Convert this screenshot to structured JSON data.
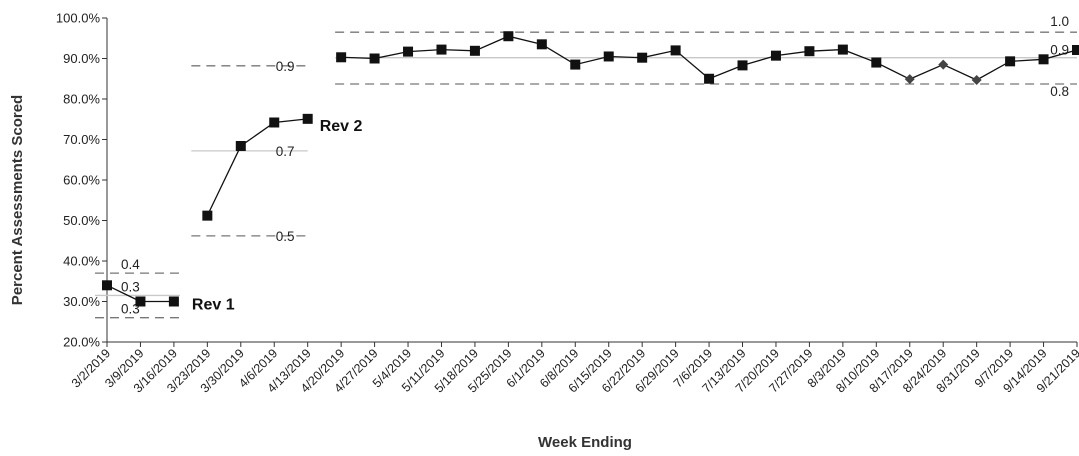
{
  "chart_data": {
    "type": "line",
    "title": "",
    "xlabel": "Week Ending",
    "ylabel": "Percent Assessments Scored",
    "ylim": [
      20,
      100
    ],
    "y_ticks": [
      "20.0%",
      "30.0%",
      "40.0%",
      "50.0%",
      "60.0%",
      "70.0%",
      "80.0%",
      "90.0%",
      "100.0%"
    ],
    "grid": false,
    "categories": [
      "3/2/2019",
      "3/9/2019",
      "3/16/2019",
      "3/23/2019",
      "3/30/2019",
      "4/6/2019",
      "4/13/2019",
      "4/20/2019",
      "4/27/2019",
      "5/4/2019",
      "5/11/2019",
      "5/18/2019",
      "5/25/2019",
      "6/1/2019",
      "6/8/2019",
      "6/15/2019",
      "6/22/2019",
      "6/29/2019",
      "7/6/2019",
      "7/13/2019",
      "7/20/2019",
      "7/27/2019",
      "8/3/2019",
      "8/10/2019",
      "8/17/2019",
      "8/24/2019",
      "8/31/2019",
      "9/7/2019",
      "9/14/2019",
      "9/21/2019"
    ],
    "segments": [
      {
        "x": [
          "3/2/2019",
          "3/9/2019",
          "3/16/2019"
        ],
        "values": [
          34.0,
          30.0,
          30.0
        ],
        "markers": [
          "square",
          "square",
          "square"
        ],
        "label": "Rev 1",
        "limits": [
          {
            "value": 37.0,
            "label": "0.4",
            "style": "dashed"
          },
          {
            "value": 31.5,
            "label": "0.3",
            "style": "solid"
          },
          {
            "value": 26.0,
            "label": "0.3",
            "style": "dashed"
          }
        ]
      },
      {
        "x": [
          "3/23/2019",
          "3/30/2019",
          "4/6/2019",
          "4/13/2019"
        ],
        "values": [
          51.2,
          68.4,
          74.2,
          75.1
        ],
        "markers": [
          "square",
          "square",
          "square",
          "square"
        ],
        "label": "Rev 2",
        "limits": [
          {
            "value": 88.2,
            "label": "0.9",
            "style": "dashed"
          },
          {
            "value": 67.2,
            "label": "0.7",
            "style": "solid"
          },
          {
            "value": 46.2,
            "label": "0.5",
            "style": "dashed"
          }
        ]
      },
      {
        "x": [
          "4/20/2019",
          "4/27/2019",
          "5/4/2019",
          "5/11/2019",
          "5/18/2019",
          "5/25/2019",
          "6/1/2019",
          "6/8/2019",
          "6/15/2019",
          "6/22/2019",
          "6/29/2019",
          "7/6/2019",
          "7/13/2019",
          "7/20/2019",
          "7/27/2019",
          "8/3/2019",
          "8/10/2019",
          "8/17/2019",
          "8/24/2019",
          "8/31/2019",
          "9/7/2019",
          "9/14/2019",
          "9/21/2019"
        ],
        "values": [
          90.3,
          90.0,
          91.7,
          92.2,
          91.9,
          95.5,
          93.5,
          88.5,
          90.5,
          90.2,
          92.0,
          85.0,
          88.3,
          90.7,
          91.8,
          92.2,
          89.0,
          84.9,
          88.5,
          84.7,
          89.3,
          89.8,
          92.1
        ],
        "markers": [
          "square",
          "square",
          "square",
          "square",
          "square",
          "square",
          "square",
          "square",
          "square",
          "square",
          "square",
          "square",
          "square",
          "square",
          "square",
          "square",
          "square",
          "diamond",
          "diamond",
          "diamond",
          "square",
          "square",
          "square"
        ],
        "label": "",
        "limits": [
          {
            "value": 96.5,
            "label": "1.0",
            "style": "dashed"
          },
          {
            "value": 90.2,
            "label": "0.9",
            "style": "solid"
          },
          {
            "value": 83.7,
            "label": "0.8",
            "style": "dashed"
          }
        ]
      }
    ]
  }
}
